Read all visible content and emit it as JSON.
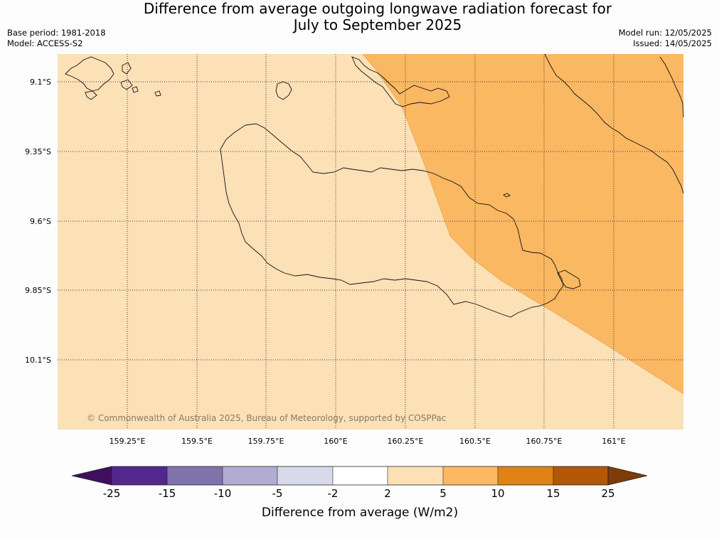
{
  "header": {
    "title_line1": "Difference from average outgoing longwave radiation forecast for",
    "title_line2": "July to September 2025",
    "base_period": "Base period: 1981-2018",
    "model": "Model: ACCESS-S2",
    "model_run": "Model run: 12/05/2025",
    "issued": "Issued: 14/05/2025"
  },
  "map": {
    "lon_ticks": [
      "159.25°E",
      "159.5°E",
      "159.75°E",
      "160°E",
      "160.25°E",
      "160.5°E",
      "160.75°E",
      "161°E"
    ],
    "lat_ticks": [
      "9.1°S",
      "9.35°S",
      "9.6°S",
      "9.85°S",
      "10.1°S"
    ],
    "copyright": "© Commonwealth of Australia 2025, Bureau of Meteorology, supported by COSPPac",
    "colors": {
      "band_2_5": "#fce0b6",
      "band_5_10": "#fbb862"
    }
  },
  "colorbar": {
    "title": "Difference from average (W/m2)",
    "tick_labels": [
      "-25",
      "-15",
      "-10",
      "-5",
      "-2",
      "2",
      "5",
      "10",
      "15",
      "25"
    ],
    "colors": [
      "#3f0f5e",
      "#54278f",
      "#8073ac",
      "#b2abd2",
      "#d8daeb",
      "#ffffff",
      "#fee0b6",
      "#fdb863",
      "#e08214",
      "#b35806",
      "#7f3b08"
    ]
  }
}
